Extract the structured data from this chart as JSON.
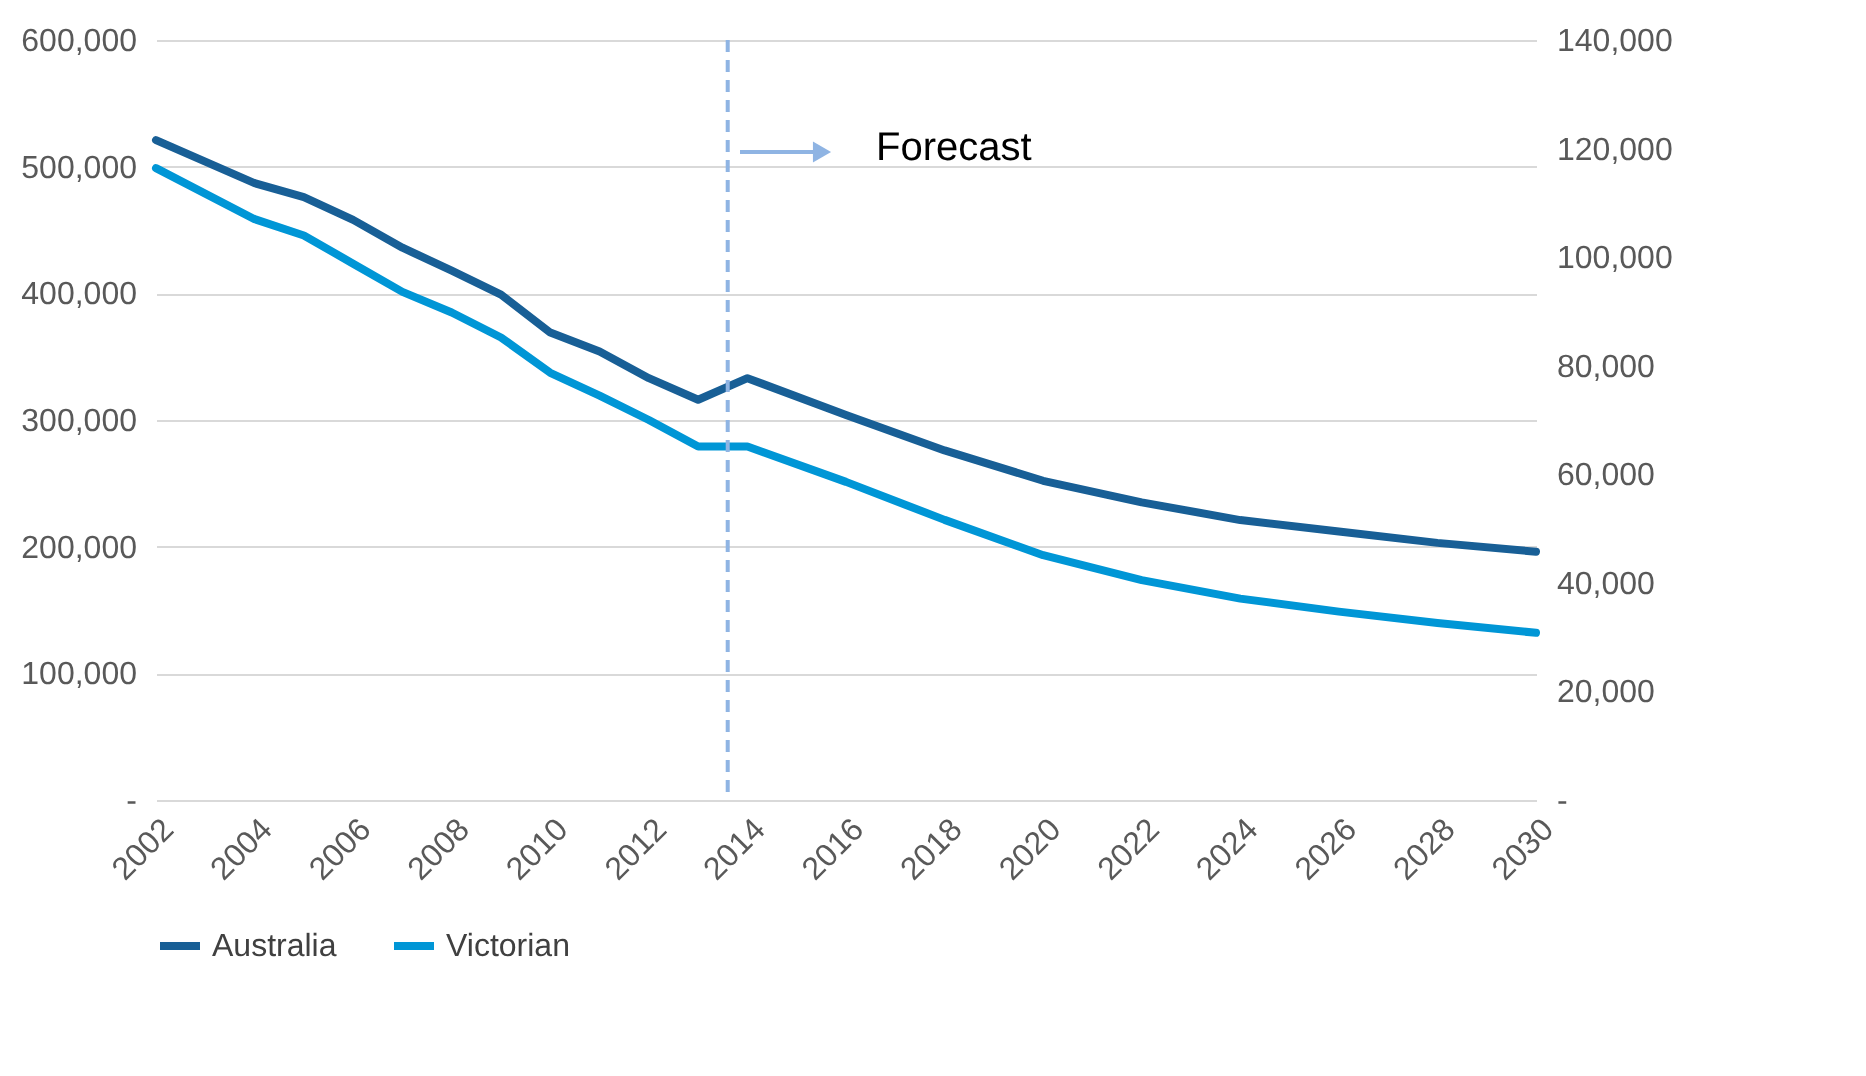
{
  "chart_data": {
    "type": "line",
    "xlim": [
      2002,
      2030
    ],
    "xticks": [
      2002,
      2004,
      2006,
      2008,
      2010,
      2012,
      2014,
      2016,
      2018,
      2020,
      2022,
      2024,
      2026,
      2028,
      2030
    ],
    "ylim": [
      0,
      600000
    ],
    "yticks": [
      {
        "value": 0,
        "label": "-"
      },
      {
        "value": 100000,
        "label": "100,000"
      },
      {
        "value": 200000,
        "label": "200,000"
      },
      {
        "value": 300000,
        "label": "300,000"
      },
      {
        "value": 400000,
        "label": "400,000"
      },
      {
        "value": 500000,
        "label": "500,000"
      },
      {
        "value": 600000,
        "label": "600,000"
      }
    ],
    "y2lim": [
      0,
      140000
    ],
    "y2ticks": [
      {
        "value": 0,
        "label": "-"
      },
      {
        "value": 20000,
        "label": "20,000"
      },
      {
        "value": 40000,
        "label": "40,000"
      },
      {
        "value": 60000,
        "label": "60,000"
      },
      {
        "value": 80000,
        "label": "80,000"
      },
      {
        "value": 100000,
        "label": "100,000"
      },
      {
        "value": 120000,
        "label": "120,000"
      },
      {
        "value": 140000,
        "label": "140,000"
      }
    ],
    "series": [
      {
        "name": "Australia",
        "color": "#185f96",
        "x": [
          2002,
          2004,
          2005,
          2006,
          2007,
          2008,
          2009,
          2010,
          2011,
          2012,
          2013,
          2014,
          2016,
          2018,
          2020,
          2022,
          2024,
          2026,
          2028,
          2030
        ],
        "values": [
          521000,
          487000,
          476000,
          458000,
          436000,
          418000,
          399000,
          369000,
          354000,
          333000,
          316000,
          333000,
          304000,
          276000,
          252000,
          235000,
          221000,
          212000,
          203000,
          196000
        ]
      },
      {
        "name": "Victorian",
        "color": "#0096d6",
        "axis": "y2",
        "x": [
          2002,
          2004,
          2005,
          2006,
          2007,
          2008,
          2009,
          2010,
          2011,
          2012,
          2013,
          2014,
          2016,
          2018,
          2020,
          2022,
          2024,
          2026,
          2028,
          2030
        ],
        "values": [
          116400,
          107000,
          104000,
          98800,
          93600,
          89800,
          85200,
          78700,
          74500,
          70000,
          65100,
          65100,
          58600,
          51600,
          45100,
          40500,
          37100,
          34700,
          32600,
          30800
        ]
      }
    ],
    "ref_lines": [
      {
        "axis": "x",
        "value": 2013.6,
        "color": "#8fb4e3",
        "line_style": "dashed"
      }
    ],
    "annotations": [
      "Forecast"
    ],
    "grid": "y",
    "legend": "bottom",
    "line_style": "solid",
    "marker": "none"
  }
}
